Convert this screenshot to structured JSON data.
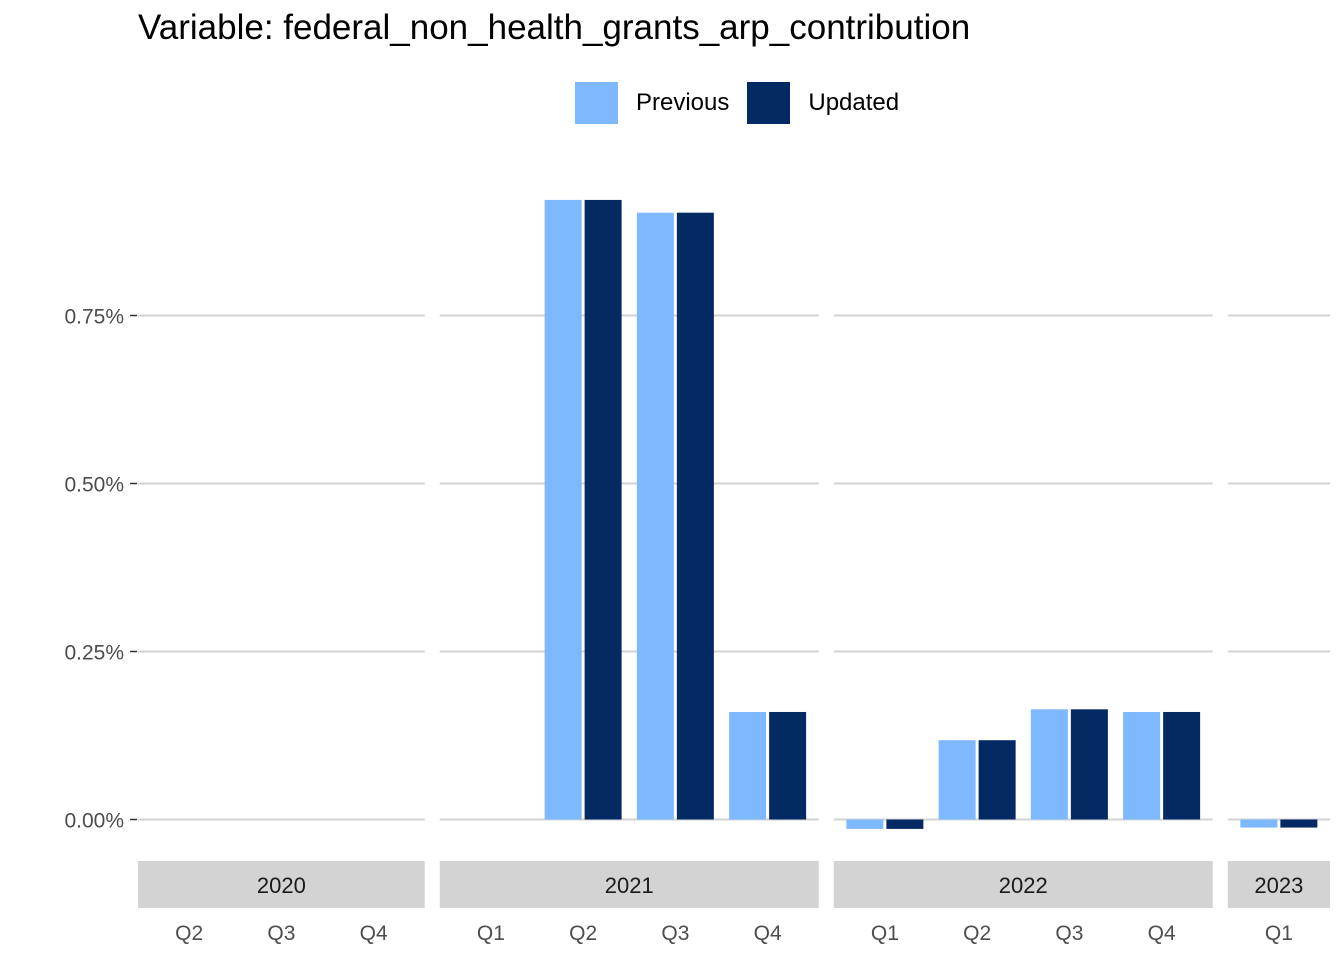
{
  "chart_data": {
    "type": "bar",
    "title": "Variable: federal_non_health_grants_arp_contribution",
    "xlabel": "",
    "ylabel": "",
    "ylim": [
      -0.0003,
      0.00975
    ],
    "y_ticks": [
      0,
      0.0025,
      0.005,
      0.0075
    ],
    "y_tick_labels": [
      "0.00%",
      "0.25%",
      "0.50%",
      "0.75%"
    ],
    "grid": true,
    "legend_position": "top",
    "facets": [
      {
        "label": "2020",
        "categories": [
          "Q2",
          "Q3",
          "Q4"
        ],
        "series": [
          {
            "name": "Previous",
            "values": [
              0,
              0,
              0
            ]
          },
          {
            "name": "Updated",
            "values": [
              0,
              0,
              0
            ]
          }
        ]
      },
      {
        "label": "2021",
        "categories": [
          "Q1",
          "Q2",
          "Q3",
          "Q4"
        ],
        "series": [
          {
            "name": "Previous",
            "values": [
              0,
              0.00922,
              0.00903,
              0.0016
            ]
          },
          {
            "name": "Updated",
            "values": [
              0,
              0.00922,
              0.00903,
              0.0016
            ]
          }
        ]
      },
      {
        "label": "2022",
        "categories": [
          "Q1",
          "Q2",
          "Q3",
          "Q4"
        ],
        "series": [
          {
            "name": "Previous",
            "values": [
              -0.00014,
              0.00118,
              0.00164,
              0.0016
            ]
          },
          {
            "name": "Updated",
            "values": [
              -0.00014,
              0.00118,
              0.00164,
              0.0016
            ]
          }
        ]
      },
      {
        "label": "2023",
        "categories": [
          "Q1"
        ],
        "series": [
          {
            "name": "Previous",
            "values": [
              -0.00012
            ]
          },
          {
            "name": "Updated",
            "values": [
              -0.00012
            ]
          }
        ]
      }
    ],
    "legend": [
      {
        "name": "Previous",
        "color": "#7eb8ff"
      },
      {
        "name": "Updated",
        "color": "#042a64"
      }
    ]
  }
}
